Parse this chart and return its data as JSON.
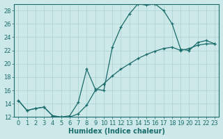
{
  "xlabel": "Humidex (Indice chaleur)",
  "background_color": "#cce8e8",
  "line_color": "#1a6b6b",
  "grid_color": "#b0d4d4",
  "xlim": [
    -0.5,
    23.5
  ],
  "ylim": [
    12,
    29
  ],
  "xticks": [
    0,
    1,
    2,
    3,
    4,
    5,
    6,
    7,
    8,
    9,
    10,
    11,
    12,
    13,
    14,
    15,
    16,
    17,
    18,
    19,
    20,
    21,
    22,
    23
  ],
  "yticks": [
    12,
    14,
    16,
    18,
    20,
    22,
    24,
    26,
    28
  ],
  "curve1_x": [
    0,
    1,
    2,
    3,
    4,
    5,
    6,
    7,
    8,
    9,
    10,
    11,
    12,
    13,
    14,
    15,
    16,
    17,
    18,
    19,
    20,
    21,
    22,
    23
  ],
  "curve1_y": [
    14.5,
    13.0,
    13.3,
    13.5,
    12.2,
    12.0,
    12.0,
    12.5,
    13.8,
    16.0,
    17.0,
    18.2,
    19.2,
    20.0,
    20.8,
    21.4,
    21.9,
    22.3,
    22.5,
    22.0,
    22.3,
    22.8,
    23.0,
    23.0
  ],
  "curve2_x": [
    0,
    1,
    2,
    3,
    4,
    5,
    6,
    7,
    8,
    9,
    10,
    11,
    12,
    13,
    14,
    15,
    16,
    17,
    18,
    19,
    20,
    21,
    22,
    23
  ],
  "curve2_y": [
    14.5,
    13.0,
    13.3,
    13.5,
    12.2,
    12.0,
    12.2,
    14.2,
    19.2,
    16.2,
    16.0,
    22.5,
    25.5,
    27.5,
    29.0,
    28.8,
    29.0,
    28.0,
    26.0,
    22.2,
    22.0,
    23.2,
    23.5,
    23.0
  ],
  "tick_fontsize": 6,
  "label_fontsize": 7
}
